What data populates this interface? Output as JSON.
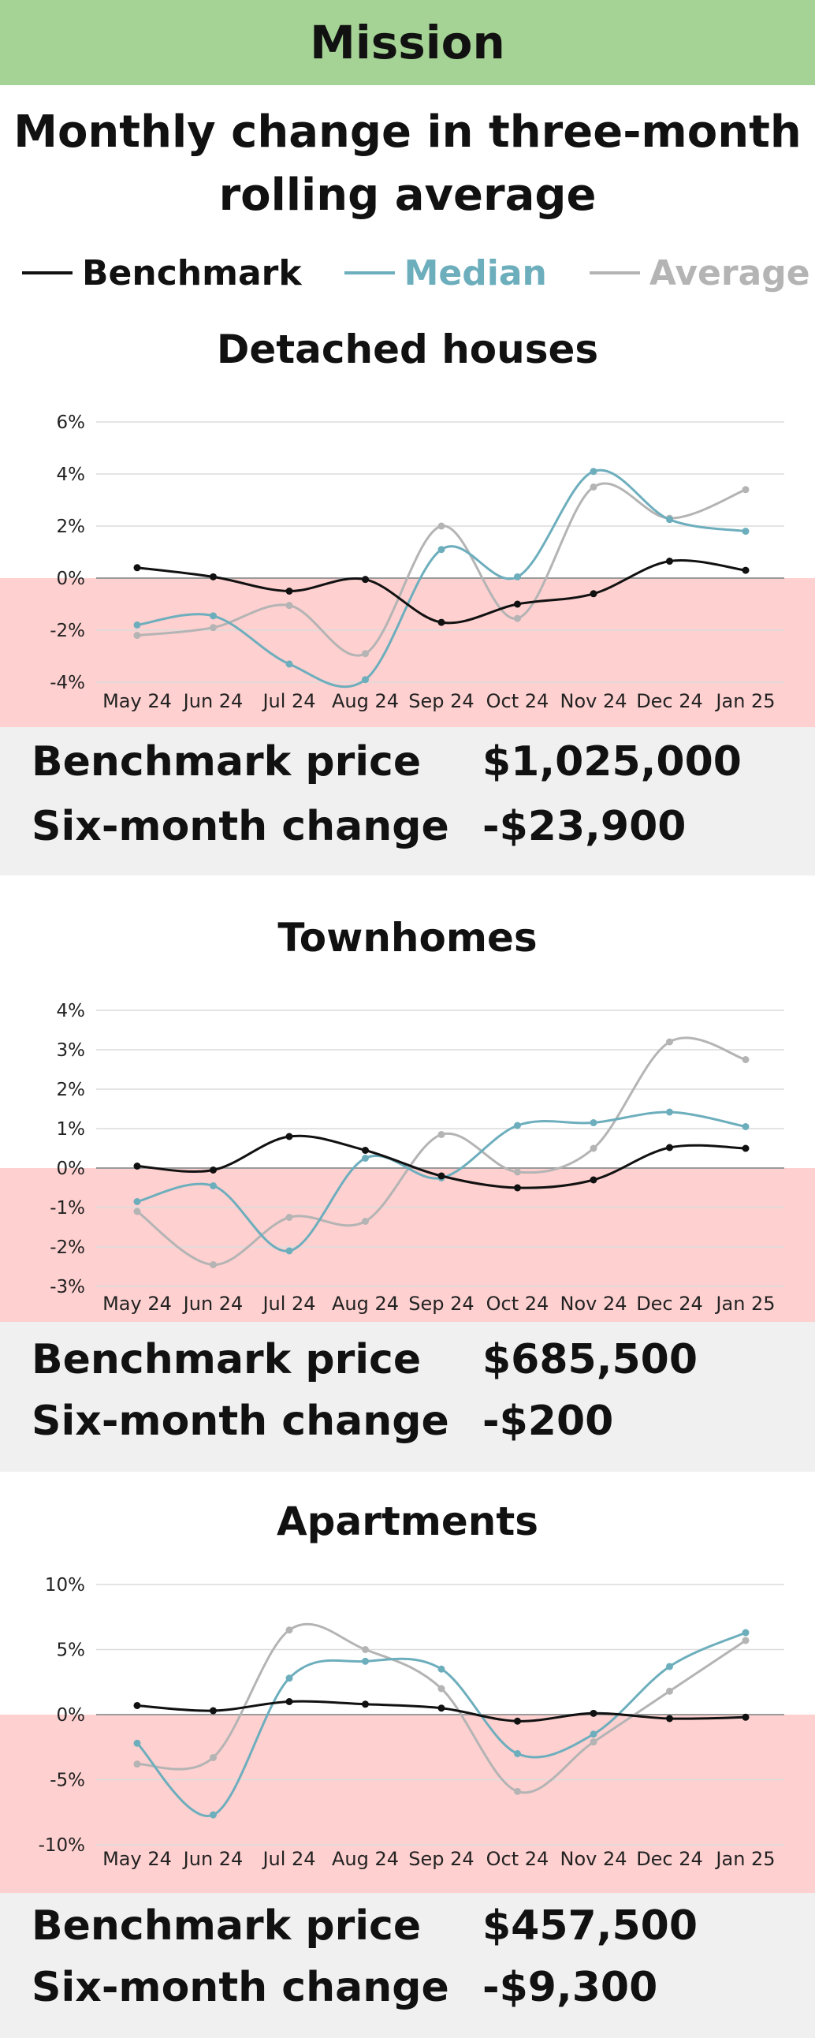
{
  "header": {
    "title": "Mission"
  },
  "subtitle": {
    "line1": "Monthly change in three-month",
    "line2": "rolling average"
  },
  "legend": [
    {
      "label": "Benchmark",
      "color": "#111111"
    },
    {
      "label": "Median",
      "color": "#6daebd"
    },
    {
      "label": "Average",
      "color": "#b4b4b4"
    }
  ],
  "colors": {
    "header_bg": "#a5d395",
    "negative_band": "#ffd0d0",
    "info_bg": "#f0f0f0"
  },
  "sections": [
    {
      "title": "Detached houses",
      "benchmark_label": "Benchmark price",
      "benchmark_value": "$1,025,000",
      "change_label": "Six-month change",
      "change_value": "-$23,900"
    },
    {
      "title": "Townhomes",
      "benchmark_label": "Benchmark price",
      "benchmark_value": "$685,500",
      "change_label": "Six-month change",
      "change_value": "-$200"
    },
    {
      "title": "Apartments",
      "benchmark_label": "Benchmark price",
      "benchmark_value": "$457,500",
      "change_label": "Six-month change",
      "change_value": "-$9,300"
    }
  ],
  "chart_data": [
    {
      "type": "line",
      "title": "Detached houses",
      "categories": [
        "May 24",
        "Jun 24",
        "Jul 24",
        "Aug 24",
        "Sep 24",
        "Oct 24",
        "Nov 24",
        "Dec 24",
        "Jan 25"
      ],
      "yticks": [
        -4,
        -2,
        0,
        2,
        4,
        6
      ],
      "ytick_labels": [
        "-4%",
        "-2%",
        "0%",
        "2%",
        "4%",
        "6%"
      ],
      "ylim": [
        -4,
        6
      ],
      "series": [
        {
          "name": "Benchmark",
          "color": "#111111",
          "values": [
            0.4,
            0.05,
            -0.5,
            -0.05,
            -1.7,
            -1.0,
            -0.6,
            0.65,
            0.3
          ]
        },
        {
          "name": "Median",
          "color": "#6daebd",
          "values": [
            -1.8,
            -1.45,
            -3.3,
            -3.9,
            1.1,
            0.05,
            4.1,
            2.25,
            1.8
          ]
        },
        {
          "name": "Average",
          "color": "#b4b4b4",
          "values": [
            -2.2,
            -1.9,
            -1.05,
            -2.9,
            2.0,
            -1.55,
            3.5,
            2.3,
            3.4
          ]
        }
      ]
    },
    {
      "type": "line",
      "title": "Townhomes",
      "categories": [
        "May 24",
        "Jun 24",
        "Jul 24",
        "Aug 24",
        "Sep 24",
        "Oct 24",
        "Nov 24",
        "Dec 24",
        "Jan 25"
      ],
      "yticks": [
        -3,
        -2,
        -1,
        0,
        1,
        2,
        3,
        4
      ],
      "ytick_labels": [
        "-3%",
        "-2%",
        "-1%",
        "0%",
        "1%",
        "2%",
        "3%",
        "4%"
      ],
      "ylim": [
        -3,
        4
      ],
      "series": [
        {
          "name": "Benchmark",
          "color": "#111111",
          "values": [
            0.05,
            -0.05,
            0.8,
            0.45,
            -0.2,
            -0.5,
            -0.3,
            0.52,
            0.5
          ]
        },
        {
          "name": "Median",
          "color": "#6daebd",
          "values": [
            -0.85,
            -0.45,
            -2.1,
            0.25,
            -0.25,
            1.08,
            1.15,
            1.42,
            1.05
          ]
        },
        {
          "name": "Average",
          "color": "#b4b4b4",
          "values": [
            -1.1,
            -2.45,
            -1.25,
            -1.35,
            0.85,
            -0.1,
            0.5,
            3.2,
            2.75
          ]
        }
      ]
    },
    {
      "type": "line",
      "title": "Apartments",
      "categories": [
        "May 24",
        "Jun 24",
        "Jul 24",
        "Aug 24",
        "Sep 24",
        "Oct 24",
        "Nov 24",
        "Dec 24",
        "Jan 25"
      ],
      "yticks": [
        -10,
        -5,
        0,
        5,
        10
      ],
      "ytick_labels": [
        "-10%",
        "-5%",
        "0%",
        "5%",
        "10%"
      ],
      "ylim": [
        -10,
        10
      ],
      "series": [
        {
          "name": "Benchmark",
          "color": "#111111",
          "values": [
            0.7,
            0.3,
            1.0,
            0.8,
            0.5,
            -0.5,
            0.1,
            -0.3,
            -0.2
          ]
        },
        {
          "name": "Median",
          "color": "#6daebd",
          "values": [
            -2.2,
            -7.7,
            2.8,
            4.1,
            3.5,
            -3.0,
            -1.5,
            3.7,
            6.3
          ]
        },
        {
          "name": "Average",
          "color": "#b4b4b4",
          "values": [
            -3.8,
            -3.3,
            6.5,
            5.0,
            2.0,
            -5.9,
            -2.1,
            1.8,
            5.7
          ]
        }
      ]
    }
  ]
}
